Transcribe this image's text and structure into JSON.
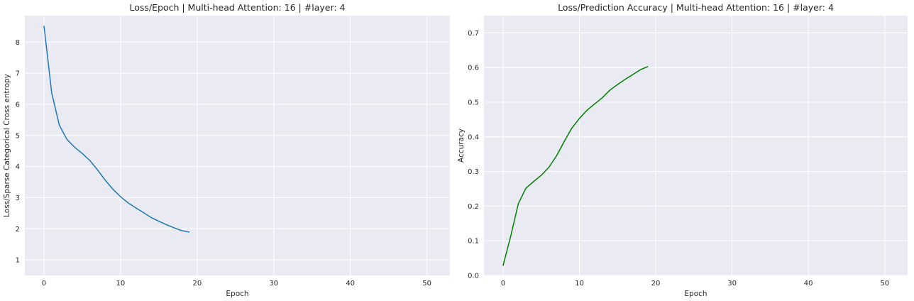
{
  "chart_data": [
    {
      "type": "line",
      "title": "Loss/Epoch | Multi-head Attention: 16 | #layer: 4",
      "xlabel": "Epoch",
      "ylabel": "Loss/Sparse Categorical Cross entropy",
      "xlim": [
        -2.5,
        53
      ],
      "ylim": [
        0.5,
        8.85
      ],
      "xticks": [
        0,
        10,
        20,
        30,
        40,
        50
      ],
      "yticks": [
        1,
        2,
        3,
        4,
        5,
        6,
        7,
        8
      ],
      "ytick_labels": [
        "1",
        "2",
        "3",
        "4",
        "5",
        "6",
        "7",
        "8"
      ],
      "grid": true,
      "color": "#1f77b4",
      "x": [
        0,
        1,
        2,
        3,
        4,
        5,
        6,
        7,
        8,
        9,
        10,
        11,
        12,
        13,
        14,
        15,
        16,
        17,
        18,
        19
      ],
      "values": [
        8.52,
        6.38,
        5.33,
        4.87,
        4.62,
        4.42,
        4.19,
        3.89,
        3.56,
        3.27,
        3.03,
        2.83,
        2.67,
        2.52,
        2.36,
        2.24,
        2.13,
        2.03,
        1.94,
        1.89
      ]
    },
    {
      "type": "line",
      "title": "Loss/Prediction Accuracy | Multi-head Attention: 16 | #layer: 4",
      "xlabel": "Epoch",
      "ylabel": "Accuracy",
      "xlim": [
        -2.5,
        53
      ],
      "ylim": [
        0.0,
        0.75
      ],
      "xticks": [
        0,
        10,
        20,
        30,
        40,
        50
      ],
      "yticks": [
        0.0,
        0.1,
        0.2,
        0.3,
        0.4,
        0.5,
        0.6,
        0.7
      ],
      "ytick_labels": [
        "0.0",
        "0.1",
        "0.2",
        "0.3",
        "0.4",
        "0.5",
        "0.6",
        "0.7"
      ],
      "grid": true,
      "color": "#008000",
      "x": [
        0,
        1,
        2,
        3,
        4,
        5,
        6,
        7,
        8,
        9,
        10,
        11,
        12,
        13,
        14,
        15,
        16,
        17,
        18,
        19
      ],
      "values": [
        0.028,
        0.113,
        0.207,
        0.252,
        0.271,
        0.289,
        0.312,
        0.345,
        0.386,
        0.425,
        0.453,
        0.477,
        0.495,
        0.513,
        0.535,
        0.551,
        0.566,
        0.58,
        0.594,
        0.603
      ]
    }
  ]
}
